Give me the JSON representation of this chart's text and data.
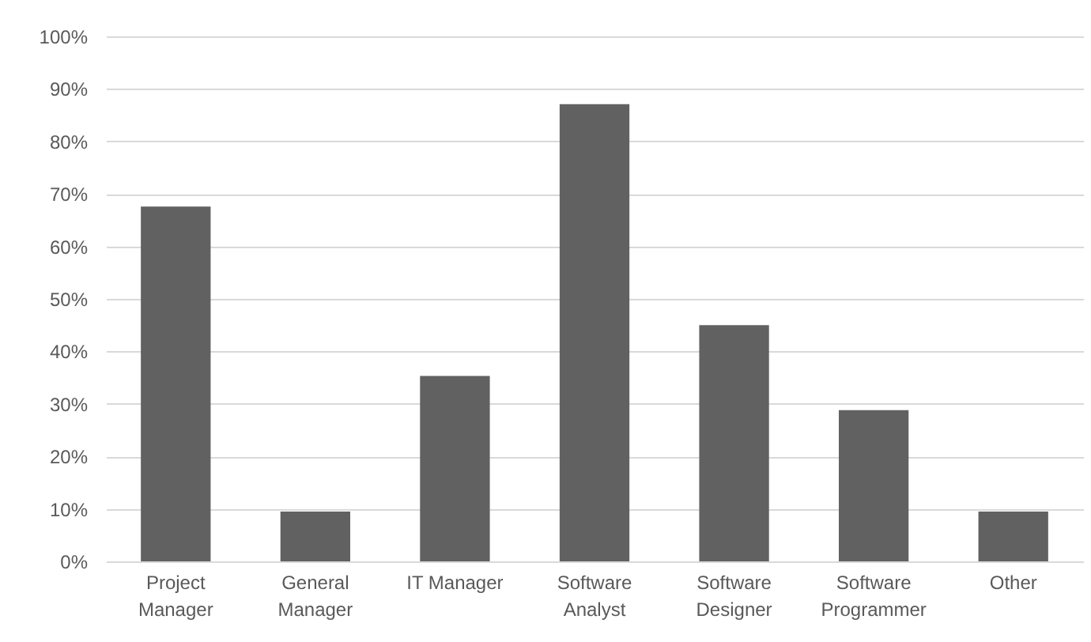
{
  "chart_data": {
    "type": "bar",
    "categories": [
      "Project Manager",
      "General Manager",
      "IT Manager",
      "Software Analyst",
      "Software Designer",
      "Software Programmer",
      "Other"
    ],
    "values": [
      67.6,
      9.5,
      35.3,
      87.1,
      45,
      28.8,
      9.5
    ],
    "color": "#616161",
    "ylim": [
      0,
      100
    ],
    "yticks": [
      {
        "value": 0,
        "label": "0%"
      },
      {
        "value": 10,
        "label": "10%"
      },
      {
        "value": 20,
        "label": "20%"
      },
      {
        "value": 30,
        "label": "30%"
      },
      {
        "value": 40,
        "label": "40%"
      },
      {
        "value": 50,
        "label": "50%"
      },
      {
        "value": 60,
        "label": "60%"
      },
      {
        "value": 70,
        "label": "70%"
      },
      {
        "value": 80,
        "label": "80%"
      },
      {
        "value": 90,
        "label": "90%"
      },
      {
        "value": 100,
        "label": "100%"
      }
    ],
    "grid": "y"
  }
}
